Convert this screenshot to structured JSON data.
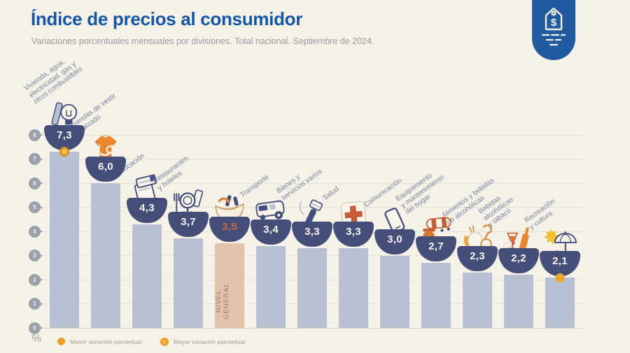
{
  "header": {
    "title": "Índice de precios al consumidor",
    "subtitle": "Variaciones porcentuales mensuales por divisiones. Total nacional. Septiembre de 2024.",
    "badge_icon": "price-tag-icon"
  },
  "chart_data": {
    "type": "bar",
    "title": "Índice de precios al consumidor",
    "subtitle": "Variaciones porcentuales mensuales por divisiones. Total nacional. Septiembre de 2024.",
    "unit_label": "%",
    "ylim": [
      0,
      8
    ],
    "yticks": [
      0,
      1,
      2,
      3,
      4,
      5,
      6,
      7,
      8
    ],
    "grid": true,
    "legend_position": "bottom-left",
    "items": [
      {
        "label": "Vivienda, agua,\nelectricidad, gas y\notros combustibles",
        "value": 7.3,
        "display": "7,3",
        "icon": "lightbulb-icon",
        "marker": "mayor"
      },
      {
        "label": "Prendas de vestir\ny calzado",
        "value": 6.0,
        "display": "6,0",
        "icon": "tshirt-icon"
      },
      {
        "label": "Educación",
        "value": 4.3,
        "display": "4,3",
        "icon": "books-icon"
      },
      {
        "label": "Restaurantes\ny hoteles",
        "value": 3.7,
        "display": "3,7",
        "icon": "cutlery-icon"
      },
      {
        "label": "NIVEL GENERAL",
        "value": 3.5,
        "display": "3,5",
        "icon": "shopping-basket-icon",
        "highlight": true,
        "bar_text": "NIVEL\nGENERAL"
      },
      {
        "label": "Transporte",
        "value": 3.4,
        "display": "3,4",
        "icon": "bus-icon"
      },
      {
        "label": "Bienes y\nservicios varios",
        "value": 3.3,
        "display": "3,3",
        "icon": "razor-icon"
      },
      {
        "label": "Salud",
        "value": 3.3,
        "display": "3,3",
        "icon": "medical-cross-icon"
      },
      {
        "label": "Comunicación",
        "value": 3.0,
        "display": "3,0",
        "icon": "phone-icon"
      },
      {
        "label": "Equipamiento\ny mantenimiento\ndel hogar",
        "value": 2.7,
        "display": "2,7",
        "icon": "appliance-icon"
      },
      {
        "label": "Alimentos y bebidas\nno alcohólicas",
        "value": 2.3,
        "display": "2,3",
        "icon": "food-icon"
      },
      {
        "label": "Bebidas\nalcohólicas\ny tabaco",
        "value": 2.2,
        "display": "2,2",
        "icon": "drinks-icon"
      },
      {
        "label": "Recreación\ny cultura",
        "value": 2.1,
        "display": "2,1",
        "icon": "umbrella-icon",
        "marker": "menor"
      }
    ],
    "legend": [
      {
        "label": "Menor variación porcentual",
        "marker": "solid-dot"
      },
      {
        "label": "Mayor variación porcentual",
        "marker": "ring-dot"
      }
    ],
    "colors": {
      "background": "#f7f2e8",
      "bar": "#b8c0d3",
      "highlight_bar": "#e2c1ad",
      "value_bowl": "#434e79",
      "value_text": "#faf6ee",
      "highlight_value_text": "#c8683c",
      "accent_yellow": "#eca928",
      "accent_orange_ring": "#da8e26",
      "title": "#1157a6",
      "badge": "#1f5b9e"
    }
  }
}
